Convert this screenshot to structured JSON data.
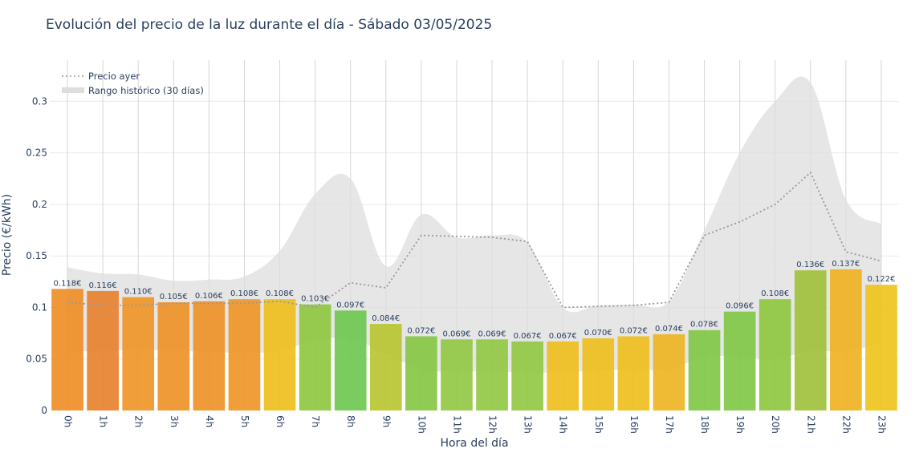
{
  "title": "Evolución del precio de la luz durante el día - Sábado 03/05/2025",
  "chart_data": {
    "type": "bar",
    "xlabel": "Hora del día",
    "ylabel": "Precio (€/kWh)",
    "ylim": [
      0,
      0.34
    ],
    "yticks": [
      "0",
      "0.05",
      "0.1",
      "0.15",
      "0.2",
      "0.25",
      "0.3"
    ],
    "ytick_values": [
      0,
      0.05,
      0.1,
      0.15,
      0.2,
      0.25,
      0.3
    ],
    "grid": true,
    "legend_position": "top-left",
    "categories": [
      "0h",
      "1h",
      "2h",
      "3h",
      "4h",
      "5h",
      "6h",
      "7h",
      "8h",
      "9h",
      "10h",
      "11h",
      "12h",
      "13h",
      "14h",
      "15h",
      "16h",
      "17h",
      "18h",
      "19h",
      "20h",
      "21h",
      "22h",
      "23h"
    ],
    "values": [
      0.118,
      0.116,
      0.11,
      0.105,
      0.106,
      0.108,
      0.108,
      0.103,
      0.097,
      0.084,
      0.072,
      0.069,
      0.069,
      0.067,
      0.067,
      0.07,
      0.072,
      0.074,
      0.078,
      0.096,
      0.108,
      0.136,
      0.137,
      0.122
    ],
    "labels": [
      "0.118€",
      "0.116€",
      "0.110€",
      "0.105€",
      "0.106€",
      "0.108€",
      "0.108€",
      "0.103€",
      "0.097€",
      "0.084€",
      "0.072€",
      "0.069€",
      "0.069€",
      "0.067€",
      "0.067€",
      "0.070€",
      "0.072€",
      "0.074€",
      "0.078€",
      "0.096€",
      "0.108€",
      "0.136€",
      "0.137€",
      "0.122€"
    ],
    "bar_colors": [
      "#ee8c22",
      "#e8802a",
      "#ee9424",
      "#ee9024",
      "#ee9024",
      "#ee9424",
      "#eebd1a",
      "#8cc63e",
      "#6cc64e",
      "#b6c42e",
      "#84c640",
      "#90c640",
      "#90c640",
      "#90c640",
      "#eebd1a",
      "#eebd1a",
      "#eebd1a",
      "#eeb41e",
      "#7ec644",
      "#7ec644",
      "#8cc63e",
      "#a0c038",
      "#eeb01e",
      "#eec21a"
    ],
    "series": [
      {
        "name": "Precio ayer",
        "style": "dotted",
        "color": "#999999",
        "values": [
          0.105,
          0.102,
          0.102,
          0.104,
          0.104,
          0.104,
          0.106,
          0.1,
          0.124,
          0.119,
          0.17,
          0.169,
          0.168,
          0.164,
          0.1,
          0.101,
          0.102,
          0.105,
          0.17,
          0.183,
          0.2,
          0.231,
          0.154,
          0.145
        ]
      },
      {
        "name": "Rango histórico (30 días)",
        "style": "band",
        "color": "#dddddd",
        "upper": [
          0.139,
          0.133,
          0.132,
          0.126,
          0.127,
          0.13,
          0.155,
          0.21,
          0.225,
          0.14,
          0.19,
          0.168,
          0.17,
          0.163,
          0.1,
          0.102,
          0.103,
          0.106,
          0.175,
          0.25,
          0.3,
          0.318,
          0.205,
          0.181
        ],
        "lower": [
          0.057,
          0.058,
          0.059,
          0.058,
          0.057,
          0.056,
          0.058,
          0.068,
          0.07,
          0.055,
          0.04,
          0.038,
          0.038,
          0.037,
          0.037,
          0.039,
          0.04,
          0.04,
          0.052,
          0.052,
          0.05,
          0.058,
          0.057,
          0.066
        ]
      }
    ]
  },
  "colors": {
    "grid": "#eaeaea",
    "text": "#2a3f5f",
    "band": "#dddddd",
    "line": "#999999"
  }
}
